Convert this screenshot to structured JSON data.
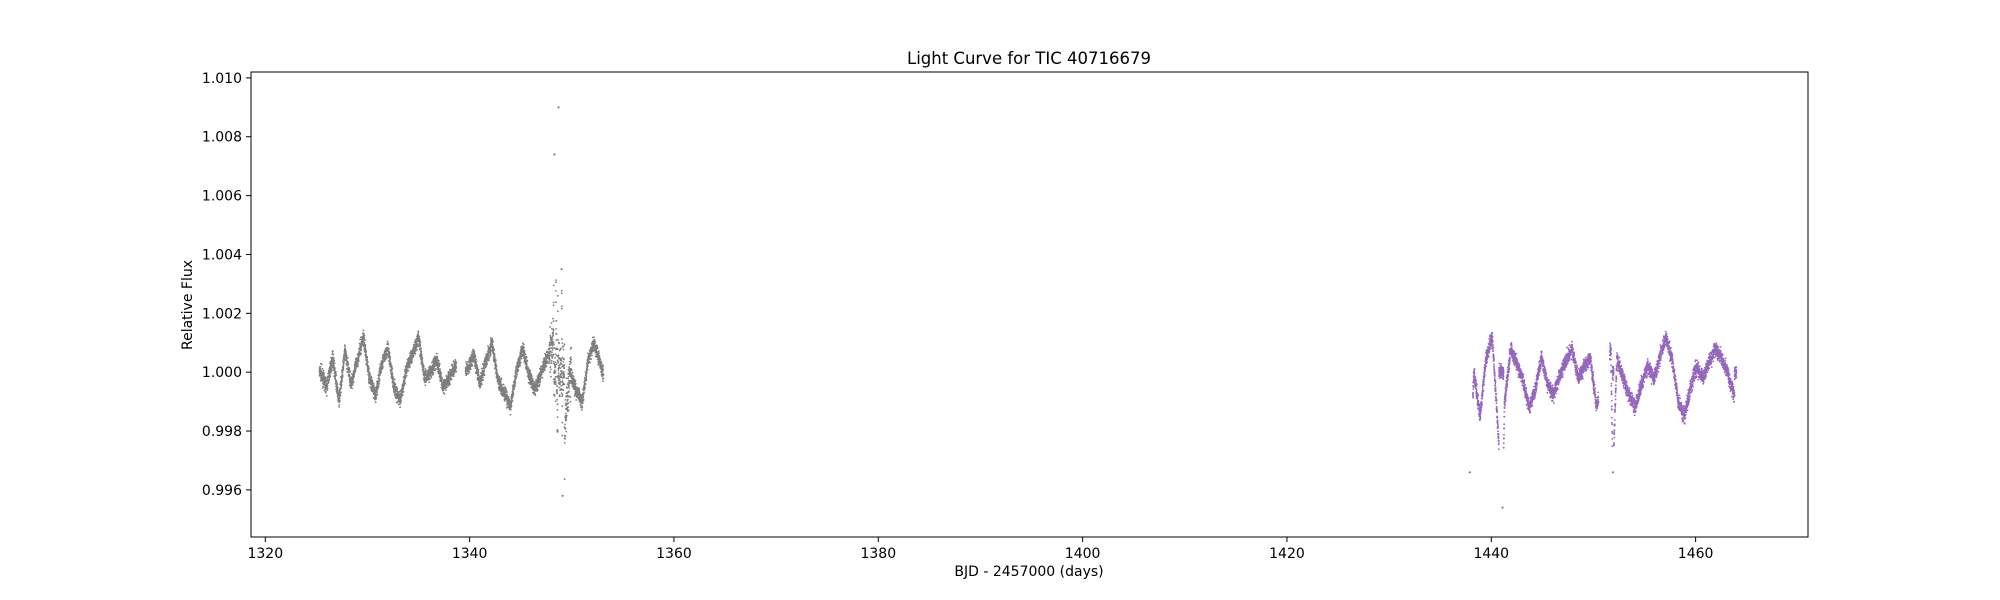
{
  "chart_data": {
    "type": "scatter",
    "title": "Light Curve for TIC 40716679",
    "xlabel": "BJD - 2457000 (days)",
    "ylabel": "Relative Flux",
    "xlim": [
      1318.6,
      1471.0
    ],
    "ylim": [
      0.9944,
      1.0102
    ],
    "x_ticks": [
      1320,
      1340,
      1360,
      1380,
      1400,
      1420,
      1440,
      1460
    ],
    "x_tick_labels": [
      "1320",
      "1340",
      "1360",
      "1380",
      "1400",
      "1420",
      "1440",
      "1460"
    ],
    "y_ticks": [
      0.996,
      0.998,
      1.0,
      1.002,
      1.004,
      1.006,
      1.008,
      1.01
    ],
    "y_tick_labels": [
      "0.996",
      "0.998",
      "1.000",
      "1.002",
      "1.004",
      "1.006",
      "1.008",
      "1.010"
    ],
    "grid": false,
    "series": [
      {
        "color": "#7f7f7f",
        "segments": [
          [
            1325.3,
            1338.7
          ],
          [
            1339.6,
            1353.1
          ]
        ],
        "points": [
          [
            1325.4,
            1.0
          ],
          [
            1326.0,
            0.9995
          ],
          [
            1326.6,
            1.0005
          ],
          [
            1327.2,
            0.999
          ],
          [
            1327.8,
            1.0007
          ],
          [
            1328.4,
            0.9996
          ],
          [
            1329.0,
            1.0004
          ],
          [
            1329.6,
            1.0012
          ],
          [
            1330.2,
            0.9998
          ],
          [
            1330.8,
            0.9992
          ],
          [
            1331.4,
            1.0003
          ],
          [
            1332.0,
            1.0008
          ],
          [
            1332.6,
            0.9995
          ],
          [
            1333.2,
            0.999
          ],
          [
            1333.8,
            1.0001
          ],
          [
            1334.4,
            1.0006
          ],
          [
            1335.0,
            1.0012
          ],
          [
            1335.6,
            0.9998
          ],
          [
            1336.2,
            1.0
          ],
          [
            1336.8,
            1.0004
          ],
          [
            1337.4,
            0.9995
          ],
          [
            1338.0,
            0.9998
          ],
          [
            1338.6,
            1.0002
          ],
          [
            1339.8,
            1.0001
          ],
          [
            1340.4,
            1.0006
          ],
          [
            1341.0,
            0.9996
          ],
          [
            1341.6,
            1.0004
          ],
          [
            1342.2,
            1.001
          ],
          [
            1342.8,
            0.9997
          ],
          [
            1343.4,
            0.9993
          ],
          [
            1344.0,
            0.9988
          ],
          [
            1344.6,
            1.0001
          ],
          [
            1345.2,
            1.0008
          ],
          [
            1345.8,
            0.9999
          ],
          [
            1346.4,
            0.9994
          ],
          [
            1347.0,
            1.0
          ],
          [
            1347.6,
            1.0005
          ],
          [
            1348.2,
            1.001
          ],
          [
            1348.6,
            0.998
          ],
          [
            1349.0,
            1.0035
          ],
          [
            1349.4,
            0.9985
          ],
          [
            1349.8,
            1.0
          ],
          [
            1350.4,
            0.9994
          ],
          [
            1351.0,
            0.999
          ],
          [
            1351.6,
            1.0004
          ],
          [
            1352.2,
            1.001
          ],
          [
            1352.9,
            1.0002
          ],
          [
            1348.7,
            1.009
          ],
          [
            1348.3,
            1.0074
          ],
          [
            1349.1,
            0.9958
          ]
        ]
      },
      {
        "color": "#9467bd",
        "segments": [
          [
            1438.2,
            1450.5
          ],
          [
            1451.6,
            1464.0
          ]
        ],
        "points": [
          [
            1438.3,
            1.0
          ],
          [
            1438.9,
            0.9985
          ],
          [
            1439.5,
            1.0005
          ],
          [
            1440.1,
            1.0012
          ],
          [
            1440.7,
            0.9978
          ],
          [
            1441.3,
            0.999
          ],
          [
            1441.9,
            1.0008
          ],
          [
            1442.5,
            1.0003
          ],
          [
            1443.1,
            0.9997
          ],
          [
            1443.7,
            0.9988
          ],
          [
            1444.3,
            0.9994
          ],
          [
            1444.9,
            1.0005
          ],
          [
            1445.5,
            0.9996
          ],
          [
            1446.1,
            0.9992
          ],
          [
            1446.7,
            0.9999
          ],
          [
            1447.3,
            1.0004
          ],
          [
            1447.9,
            1.0008
          ],
          [
            1448.5,
            0.9998
          ],
          [
            1449.1,
            1.0002
          ],
          [
            1449.7,
            1.0005
          ],
          [
            1450.3,
            0.9988
          ],
          [
            1451.7,
            1.0008
          ],
          [
            1452.3,
            1.0005
          ],
          [
            1452.9,
            0.9998
          ],
          [
            1453.5,
            0.9992
          ],
          [
            1454.1,
            0.9988
          ],
          [
            1454.7,
            0.9996
          ],
          [
            1455.3,
            1.0002
          ],
          [
            1455.9,
            0.9998
          ],
          [
            1456.5,
            1.0005
          ],
          [
            1457.1,
            1.0012
          ],
          [
            1457.7,
            1.0004
          ],
          [
            1458.3,
            0.999
          ],
          [
            1458.9,
            0.9985
          ],
          [
            1459.5,
            0.9995
          ],
          [
            1460.1,
            1.0002
          ],
          [
            1460.7,
            0.9998
          ],
          [
            1461.3,
            1.0003
          ],
          [
            1461.9,
            1.0008
          ],
          [
            1462.5,
            1.0005
          ],
          [
            1463.1,
            1.0
          ],
          [
            1463.8,
            0.9992
          ],
          [
            1441.1,
            0.9954
          ],
          [
            1437.9,
            0.9966
          ],
          [
            1451.9,
            0.9966
          ]
        ]
      }
    ]
  }
}
